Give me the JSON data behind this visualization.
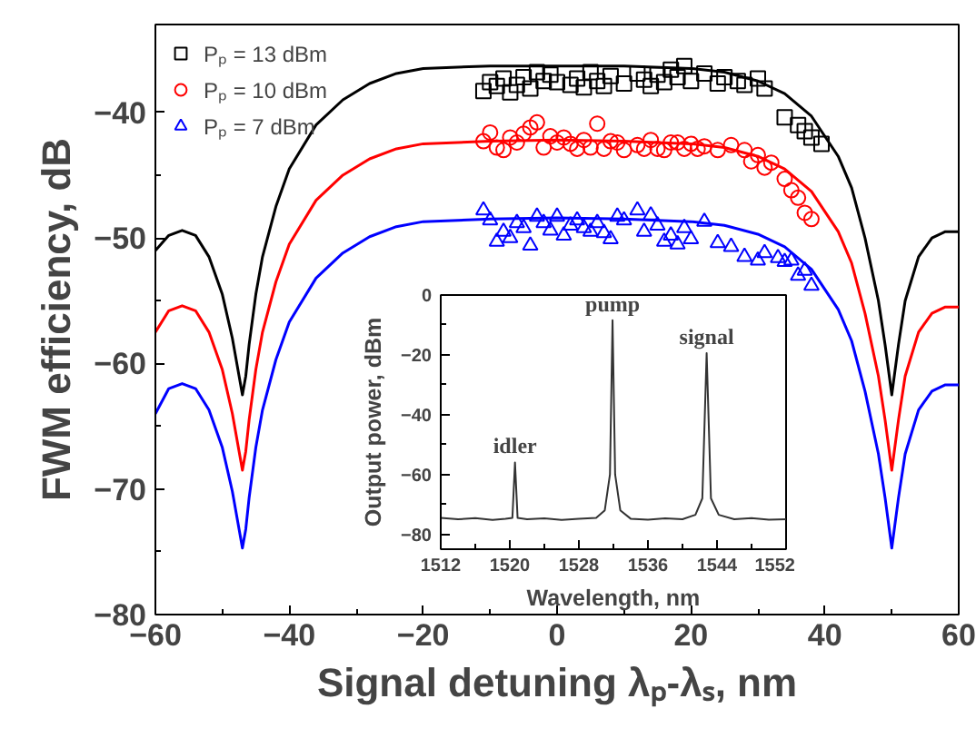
{
  "chart_data": [
    {
      "type": "scatter",
      "xlabel": "Signal detuning λₚ-λₛ, nm",
      "ylabel": "FWM efficiency, dB",
      "xlim": [
        -60,
        60
      ],
      "xticks": [
        -60,
        -40,
        -20,
        0,
        20,
        40,
        60
      ],
      "ylim": [
        -80,
        -33
      ],
      "yticks": [
        -80,
        -70,
        -60,
        -50,
        -40
      ],
      "legend": "top left",
      "series": [
        {
          "name": "Pₚ = 13 dBm",
          "type": "scatter",
          "marker": "square",
          "color": "#000000",
          "x": [
            -11,
            -10,
            -9,
            -8,
            -7,
            -6,
            -5,
            -4,
            -3,
            -2,
            -1,
            0,
            1,
            2,
            3,
            4,
            5,
            6,
            7,
            8,
            10,
            12,
            13,
            14,
            15,
            16,
            17,
            18,
            19,
            20,
            22,
            24,
            25,
            27,
            28,
            30,
            31,
            34,
            36,
            37,
            38,
            39.5
          ],
          "values": [
            -38.3,
            -37.6,
            -37.9,
            -37.3,
            -38.4,
            -37.8,
            -37.2,
            -38.1,
            -36.8,
            -37.5,
            -37.0,
            -37.6,
            null,
            -37.8,
            -37.3,
            -38.0,
            -36.8,
            -37.5,
            -37.9,
            -37.1,
            -37.7,
            -36.9,
            -37.4,
            -37.9,
            -37.0,
            -37.6,
            -36.6,
            -37.2,
            -36.3,
            -37.5,
            -36.9,
            -37.7,
            -37.2,
            -37.5,
            -37.8,
            -37.3,
            -38.1,
            -40.4,
            -41.0,
            -41.5,
            -42.0,
            -42.5
          ]
        },
        {
          "name": "Pₚ = 10 dBm",
          "type": "scatter",
          "marker": "circle",
          "color": "#ff0000",
          "x": [
            -11,
            -10,
            -9,
            -8,
            -7,
            -6,
            -5,
            -4,
            -3,
            -2,
            -1,
            0,
            1,
            2,
            3,
            4,
            5,
            6,
            7,
            8,
            9,
            10,
            12,
            13,
            14,
            15,
            16,
            17,
            18,
            19,
            20,
            21,
            22,
            24,
            26,
            28,
            29,
            30,
            31,
            32,
            34,
            35,
            36,
            37,
            38
          ],
          "values": [
            -42.3,
            -41.6,
            -42.8,
            -43.0,
            -42.0,
            -42.4,
            -41.7,
            -41.2,
            -40.8,
            -42.8,
            -41.9,
            -42.4,
            -42.0,
            -42.5,
            -42.9,
            -42.2,
            -42.8,
            -40.9,
            -42.9,
            -42.3,
            -42.4,
            -43.0,
            -42.6,
            -42.9,
            -42.2,
            -42.9,
            -43.0,
            -42.4,
            -42.4,
            -42.9,
            -42.5,
            -42.9,
            -42.7,
            -43.0,
            -42.6,
            -43.0,
            -43.9,
            -43.4,
            -44.4,
            -44.0,
            -45.3,
            -46.2,
            -46.8,
            -48.0,
            -48.5
          ]
        },
        {
          "name": "Pₚ = 7 dBm",
          "type": "scatter",
          "marker": "triangle",
          "color": "#0000ff",
          "x": [
            -11,
            -10,
            -9,
            -8,
            -7,
            -6,
            -5,
            -4,
            -3,
            -2,
            -1,
            0,
            1,
            2,
            3,
            4,
            5,
            6,
            7,
            8,
            9,
            10,
            12,
            13,
            14,
            15,
            16,
            17,
            18,
            19,
            20,
            22,
            24,
            26,
            28,
            30,
            31,
            33,
            34,
            35,
            36,
            37,
            38
          ],
          "values": [
            -47.8,
            -48.6,
            -50.3,
            -49.5,
            -50.0,
            -48.8,
            -49.2,
            -50.6,
            -48.3,
            -48.8,
            -49.4,
            -48.3,
            -49.8,
            -49.0,
            -48.6,
            -49.2,
            -49.5,
            -48.8,
            -49.6,
            -50.1,
            -48.3,
            -48.6,
            -47.8,
            -49.5,
            -48.2,
            -49.0,
            -50.3,
            -49.8,
            -50.5,
            -49.2,
            -50.1,
            -48.7,
            -50.4,
            -50.7,
            -51.5,
            -51.8,
            -51.2,
            -51.6,
            -51.9,
            -51.8,
            -53.0,
            -52.6,
            -53.8
          ]
        },
        {
          "type": "line",
          "color": "#000000",
          "x": [
            -60,
            -58,
            -56,
            -54,
            -52,
            -50,
            -48.5,
            -47.5,
            -47,
            -46.5,
            -46,
            -45,
            -44,
            -42,
            -40,
            -36,
            -32,
            -28,
            -24,
            -20,
            -10,
            0,
            10,
            20,
            25,
            30,
            34,
            38,
            42,
            44,
            46,
            48,
            49,
            50,
            51,
            52,
            54,
            56,
            58,
            60
          ],
          "values": [
            -51,
            -49.8,
            -49.4,
            -49.8,
            -51.5,
            -54.5,
            -58,
            -61,
            -62.5,
            -61,
            -58.5,
            -54.5,
            -51.5,
            -47.5,
            -44.5,
            -41,
            -39,
            -37.7,
            -36.9,
            -36.5,
            -36.3,
            -36.3,
            -36.3,
            -36.5,
            -36.8,
            -37.5,
            -38.5,
            -40.3,
            -43.5,
            -46,
            -50,
            -55,
            -58.5,
            -62.5,
            -58.5,
            -55,
            -51.5,
            -50,
            -49.5,
            -49.5
          ]
        },
        {
          "type": "line",
          "color": "#ff0000",
          "x": [
            -60,
            -58,
            -56,
            -54,
            -52,
            -50,
            -48.5,
            -47.5,
            -47,
            -46.5,
            -46,
            -45,
            -44,
            -42,
            -40,
            -36,
            -32,
            -28,
            -24,
            -20,
            -10,
            0,
            10,
            20,
            25,
            30,
            34,
            38,
            42,
            44,
            46,
            48,
            49,
            50,
            51,
            52,
            54,
            56,
            58,
            60
          ],
          "values": [
            -57.5,
            -55.8,
            -55.4,
            -55.8,
            -57.5,
            -60.5,
            -64,
            -67,
            -68.5,
            -67,
            -64.5,
            -60.5,
            -57.5,
            -53.5,
            -50.5,
            -47,
            -45,
            -43.7,
            -42.9,
            -42.5,
            -42.3,
            -42.2,
            -42.3,
            -42.5,
            -42.8,
            -43.5,
            -44.5,
            -46.3,
            -49.5,
            -52,
            -56,
            -61,
            -64.5,
            -68.5,
            -64.5,
            -61,
            -57.5,
            -56,
            -55.5,
            -55.5
          ]
        },
        {
          "type": "line",
          "color": "#0000ff",
          "x": [
            -60,
            -58,
            -56,
            -54,
            -52,
            -50,
            -48.5,
            -47.5,
            -47,
            -46.5,
            -46,
            -45,
            -44,
            -42,
            -40,
            -36,
            -32,
            -28,
            -24,
            -20,
            -10,
            0,
            10,
            20,
            25,
            30,
            34,
            38,
            42,
            44,
            46,
            48,
            49,
            50,
            51,
            52,
            54,
            56,
            58,
            60
          ],
          "values": [
            -64,
            -62,
            -61.6,
            -62,
            -63.7,
            -66.7,
            -70.2,
            -73.2,
            -74.7,
            -73.2,
            -70.7,
            -66.7,
            -63.7,
            -59.7,
            -56.7,
            -53.2,
            -51.2,
            -49.9,
            -49.1,
            -48.7,
            -48.5,
            -48.4,
            -48.5,
            -48.7,
            -49,
            -49.7,
            -50.7,
            -52.5,
            -55.7,
            -58.2,
            -62.2,
            -67.2,
            -70.7,
            -74.7,
            -70.7,
            -67.2,
            -63.7,
            -62.2,
            -61.7,
            -61.7
          ]
        }
      ]
    },
    {
      "type": "line",
      "xlabel": "Wavelength, nm",
      "ylabel": "Output power, dBm",
      "xlim": [
        1512,
        1552
      ],
      "xticks": [
        1512,
        1520,
        1528,
        1536,
        1544,
        1552
      ],
      "ylim": [
        -85,
        0
      ],
      "yticks": [
        -80,
        -60,
        -40,
        -20,
        0
      ],
      "annotations": [
        {
          "text": "idler",
          "x": 1520.6,
          "y": -56
        },
        {
          "text": "pump",
          "x": 1531.9,
          "y": -8.4
        },
        {
          "text": "signal",
          "x": 1542.8,
          "y": -19.4
        }
      ],
      "series": [
        {
          "color": "#333333",
          "x": [
            1512,
            1514,
            1516,
            1518,
            1519.5,
            1520.3,
            1520.6,
            1520.9,
            1522,
            1524,
            1526,
            1528,
            1530,
            1531,
            1531.6,
            1531.9,
            1532.2,
            1532.8,
            1534,
            1536,
            1538,
            1540,
            1541.5,
            1542.3,
            1542.8,
            1543.3,
            1544.2,
            1546,
            1548,
            1550,
            1552
          ],
          "values": [
            -74.5,
            -75,
            -74.6,
            -75.2,
            -74.8,
            -74.5,
            -56,
            -74.5,
            -75,
            -74.7,
            -75.2,
            -74.8,
            -74.5,
            -72,
            -60,
            -8.4,
            -60,
            -72,
            -74.8,
            -75.1,
            -74.7,
            -75,
            -73.5,
            -68,
            -19.4,
            -68,
            -73.5,
            -75,
            -74.6,
            -75.1,
            -75
          ]
        }
      ]
    }
  ]
}
